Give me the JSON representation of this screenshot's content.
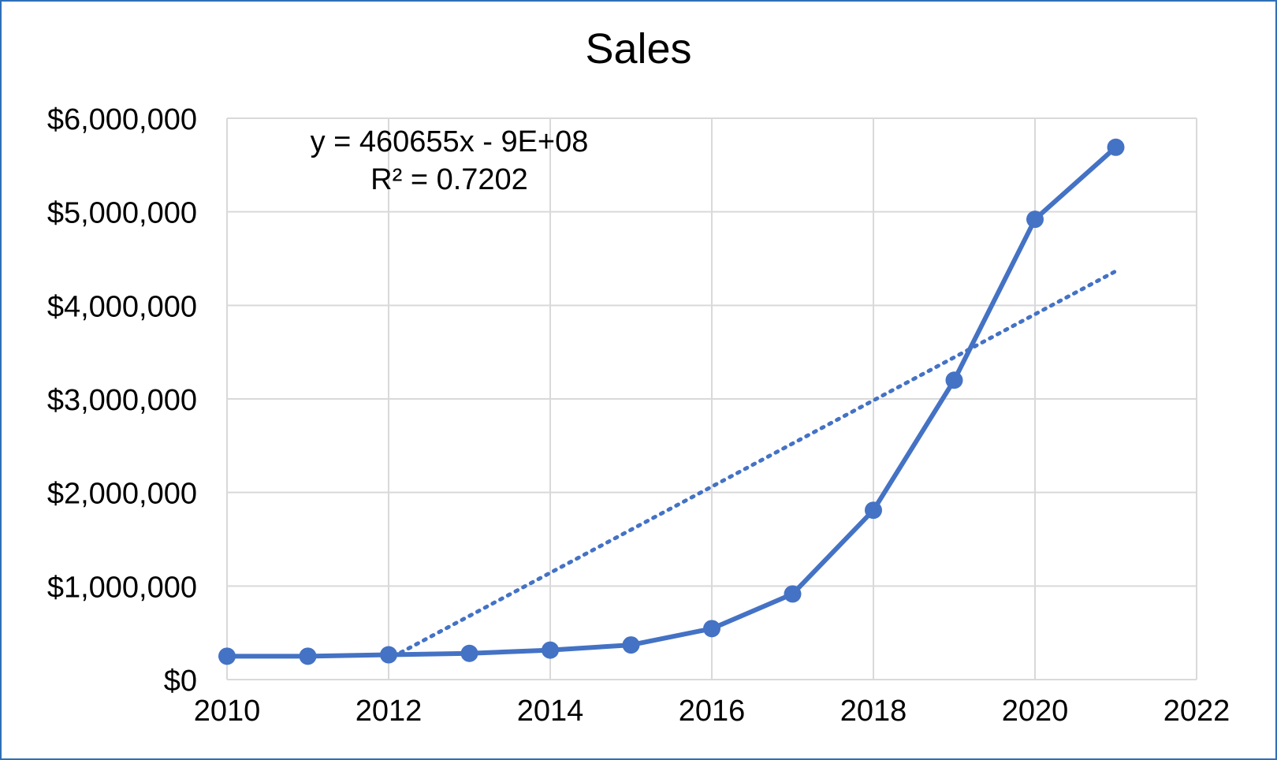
{
  "colors": {
    "series": "#4472c4",
    "grid": "#d9d9d9",
    "frame": "#2f6fb7",
    "text": "#000000"
  },
  "chart_data": {
    "type": "scatter",
    "title": "Sales",
    "xlabel": "",
    "ylabel": "",
    "xlim": [
      2010,
      2022
    ],
    "ylim": [
      0,
      6000000
    ],
    "x_ticks": [
      2010,
      2012,
      2014,
      2016,
      2018,
      2020,
      2022
    ],
    "x_tick_labels": [
      "2010",
      "2012",
      "2014",
      "2016",
      "2018",
      "2020",
      "2022"
    ],
    "y_ticks": [
      0,
      1000000,
      2000000,
      3000000,
      4000000,
      5000000,
      6000000
    ],
    "y_tick_labels": [
      "$0",
      "$1,000,000",
      "$2,000,000",
      "$3,000,000",
      "$4,000,000",
      "$5,000,000",
      "$6,000,000"
    ],
    "grid": true,
    "legend": "none",
    "series": [
      {
        "style": "line-with-markers",
        "x": [
          2010,
          2011,
          2012,
          2013,
          2014,
          2015,
          2016,
          2017,
          2018,
          2019,
          2020,
          2021
        ],
        "y": [
          250000,
          250000,
          265000,
          280000,
          315000,
          370000,
          545000,
          915000,
          1810000,
          3200000,
          4920000,
          5690000
        ]
      }
    ],
    "trendline": {
      "type": "linear",
      "style": "dotted",
      "slope": 460655,
      "intercept": -926618000,
      "x_range": [
        2012.15,
        2021
      ],
      "equation": "y = 460655x - 9E+08",
      "r_squared": "R² = 0.7202"
    }
  }
}
